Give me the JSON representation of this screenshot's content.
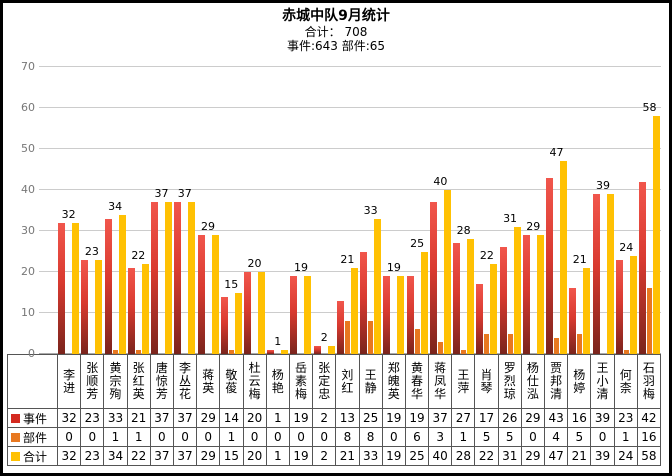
{
  "header": {
    "title": "赤城中队9月统计",
    "subtitle_total": "合计： 708",
    "subtitle_detail": "事件:643 部件:65"
  },
  "chart_data": {
    "type": "bar",
    "title": "赤城中队9月统计",
    "categories": [
      "李进",
      "张顺芳",
      "黄宗殉",
      "张红英",
      "唐惊芳",
      "李丛花",
      "蒋英",
      "敬葰",
      "杜云梅",
      "杨艳",
      "岳素梅",
      "张定忠",
      "刘红",
      "王静",
      "郑魄英",
      "黄春华",
      "蒋凤华",
      "王萍",
      "肖琴",
      "罗烈琼",
      "杨仕泓",
      "贾邦清",
      "杨婷",
      "王小清",
      "何柰",
      "石羽梅"
    ],
    "series": [
      {
        "id": "events",
        "name": "事件",
        "color": "#d42a20",
        "values": [
          32,
          23,
          33,
          21,
          37,
          37,
          29,
          14,
          20,
          1,
          19,
          2,
          13,
          25,
          19,
          19,
          37,
          27,
          17,
          26,
          29,
          43,
          16,
          39,
          23,
          42
        ]
      },
      {
        "id": "parts",
        "name": "部件",
        "color": "#e87820",
        "values": [
          0,
          0,
          1,
          1,
          0,
          0,
          0,
          1,
          0,
          0,
          0,
          0,
          8,
          8,
          0,
          6,
          3,
          1,
          5,
          5,
          0,
          4,
          5,
          0,
          1,
          16
        ]
      },
      {
        "id": "total",
        "name": "合计",
        "color": "#ffc103",
        "values": [
          32,
          23,
          34,
          22,
          37,
          37,
          29,
          15,
          20,
          1,
          19,
          2,
          21,
          33,
          19,
          25,
          40,
          28,
          22,
          31,
          29,
          47,
          21,
          39,
          24,
          58
        ]
      }
    ],
    "bar_labels": [
      32,
      23,
      34,
      22,
      37,
      37,
      29,
      15,
      20,
      1,
      19,
      2,
      21,
      33,
      19,
      25,
      40,
      28,
      22,
      31,
      29,
      47,
      21,
      39,
      24,
      58
    ],
    "ylim": [
      0,
      70
    ],
    "yticks": [
      0,
      10,
      20,
      30,
      40,
      50,
      60,
      70
    ],
    "grid": true,
    "legend_position": "table-left",
    "totals": {
      "events": 643,
      "parts": 65,
      "all": 708
    }
  }
}
